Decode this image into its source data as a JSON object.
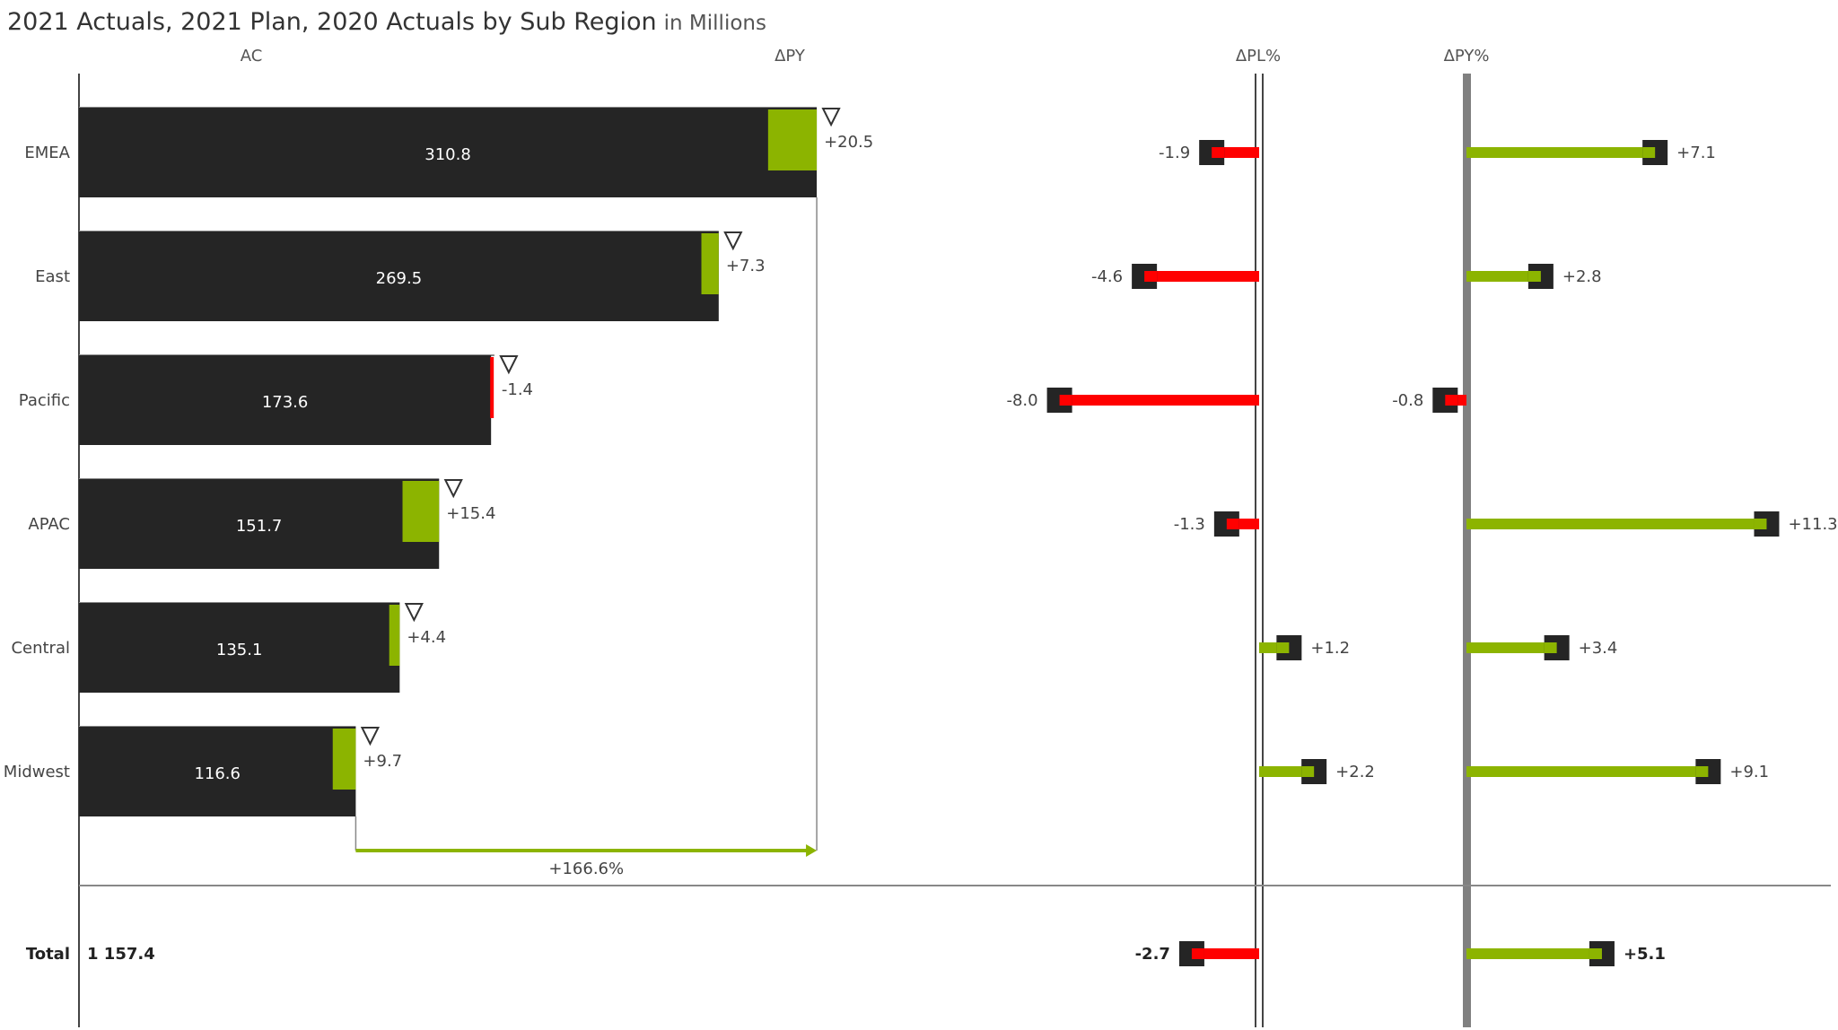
{
  "title": "2021 Actuals, 2021 Plan, 2020 Actuals by Sub Region",
  "title_unit": "in Millions",
  "colors": {
    "bar": "#252525",
    "positive": "#8cb400",
    "negative": "#ff0000",
    "axis": "#808080",
    "marker": "#252525"
  },
  "chart_data": {
    "type": "bar",
    "orientation": "horizontal",
    "headers": {
      "ac": "AC",
      "dpy": "ΔPY",
      "dpl_pct": "ΔPL%",
      "dpy_pct": "ΔPY%"
    },
    "categories": [
      "EMEA",
      "East",
      "Pacific",
      "APAC",
      "Central",
      "Midwest"
    ],
    "series": [
      {
        "name": "AC",
        "values": [
          310.8,
          269.5,
          173.6,
          151.7,
          135.1,
          116.6
        ],
        "labels": [
          "310.8",
          "269.5",
          "173.6",
          "151.7",
          "135.1",
          "116.6"
        ]
      },
      {
        "name": "ΔPY",
        "values": [
          20.5,
          7.3,
          -1.4,
          15.4,
          4.4,
          9.7
        ],
        "labels": [
          "+20.5",
          "+7.3",
          "-1.4",
          "+15.4",
          "+4.4",
          "+9.7"
        ]
      },
      {
        "name": "ΔPL%",
        "values": [
          -1.9,
          -4.6,
          -8.0,
          -1.3,
          1.2,
          2.2
        ],
        "labels": [
          "-1.9",
          "-4.6",
          "-8.0",
          "-1.3",
          "+1.2",
          "+2.2"
        ]
      },
      {
        "name": "ΔPY%",
        "values": [
          7.1,
          2.8,
          -0.8,
          11.3,
          3.4,
          9.1
        ],
        "labels": [
          "+7.1",
          "+2.8",
          "-0.8",
          "+11.3",
          "+3.4",
          "+9.1"
        ]
      }
    ],
    "difference_arrow": {
      "label": "+166.6%",
      "value": 166.6
    },
    "total": {
      "label": "Total",
      "ac_label": "1 157.4",
      "ac_value": 1157.4,
      "dpl_pct": -2.7,
      "dpl_pct_label": "-2.7",
      "dpy_pct": 5.1,
      "dpy_pct_label": "+5.1"
    },
    "grid": false
  }
}
